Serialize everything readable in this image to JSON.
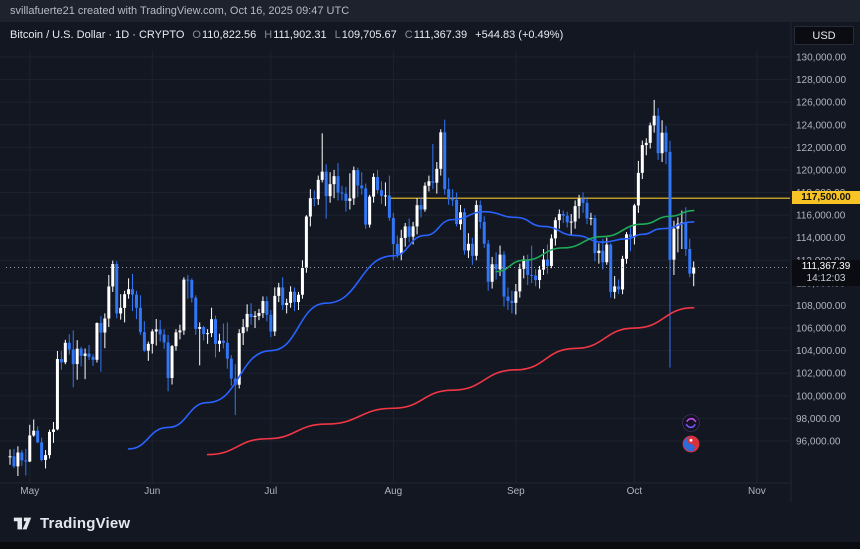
{
  "header": {
    "attribution": "svillafuerte21 created with TradingView.com, Oct 16, 2025 09:47 UTC",
    "symbol_title": "Bitcoin / U.S. Dollar · 1D · CRYPTO",
    "ohlc": {
      "o_label": "O",
      "o": "110,822.56",
      "h_label": "H",
      "h": "111,902.31",
      "l_label": "L",
      "l": "109,705.67",
      "c_label": "C",
      "c": "111,367.39",
      "change": "+544.83 (+0.49%)"
    },
    "currency_button": "USD"
  },
  "labels": {
    "yellow_level": "117,500.00",
    "last_price": "111,367.39",
    "countdown": "14:12:03"
  },
  "axes": {
    "price_ticks": [
      "130,000.00",
      "128,000.00",
      "126,000.00",
      "124,000.00",
      "122,000.00",
      "120,000.00",
      "118,000.00",
      "116,000.00",
      "114,000.00",
      "112,000.00",
      "110,000.00",
      "108,000.00",
      "106,000.00",
      "104,000.00",
      "102,000.00",
      "100,000.00",
      "98,000.00",
      "96,000.00"
    ],
    "time_ticks": [
      "May",
      "Jun",
      "Jul",
      "Aug",
      "Sep",
      "Oct",
      "Nov"
    ]
  },
  "footer": {
    "logo_text": "TradingView"
  },
  "colors": {
    "background": "#131722",
    "topbar_bg": "#1e222d",
    "grid": "#1c2230",
    "axis_separator": "#1f2532",
    "up": "#ffffff",
    "down": "#3176f6",
    "ma_blue": "#2962ff",
    "ma_green": "#1fab58",
    "ma_red": "#f23645",
    "yellow": "#f7c325",
    "dotted_last": "#9aa0ae",
    "axis_text": "#b0b4bf"
  },
  "chart_data": {
    "type": "candlestick",
    "title": "Bitcoin / U.S. Dollar",
    "interval": "1D",
    "exchange": "CRYPTO",
    "start_date": "2025-04-26",
    "end_date": "2025-10-16",
    "candle_format": "[high, low, close]; open = previous candle close",
    "first_open": 94640,
    "price_axis": {
      "max": 130000,
      "min": 96000,
      "step": 2000
    },
    "month_tick_indices": [
      5,
      36,
      66,
      97,
      128,
      158,
      189
    ],
    "levels": {
      "yellow_line": 117500,
      "yellow_from_index": 96,
      "last_price": 111367.39
    },
    "up_color": "#ffffff",
    "down_color": "#3176f6",
    "candles_hlc": [
      [
        95250,
        93900,
        94646
      ],
      [
        95300,
        93600,
        93754
      ],
      [
        95530,
        92900,
        94978
      ],
      [
        95200,
        93800,
        94284
      ],
      [
        95300,
        92950,
        94182
      ],
      [
        97440,
        94130,
        96490
      ],
      [
        97905,
        96380,
        96910
      ],
      [
        97300,
        95800,
        95880
      ],
      [
        96300,
        94200,
        94320
      ],
      [
        95200,
        93570,
        94750
      ],
      [
        97000,
        94450,
        96800
      ],
      [
        97680,
        95830,
        97030
      ],
      [
        103970,
        96950,
        103260
      ],
      [
        104000,
        102300,
        102970
      ],
      [
        104960,
        102800,
        104700
      ],
      [
        105450,
        103650,
        104100
      ],
      [
        105790,
        100750,
        102810
      ],
      [
        104930,
        101430,
        104170
      ],
      [
        104350,
        102600,
        103540
      ],
      [
        104190,
        101480,
        103740
      ],
      [
        104500,
        103180,
        103450
      ],
      [
        103700,
        102650,
        103190
      ],
      [
        106500,
        102950,
        106450
      ],
      [
        107070,
        102130,
        105600
      ],
      [
        107300,
        104220,
        106850
      ],
      [
        110700,
        106100,
        109680
      ],
      [
        111970,
        109200,
        111670
      ],
      [
        111920,
        106860,
        107290
      ],
      [
        109000,
        106750,
        107790
      ],
      [
        109300,
        106500,
        109000
      ],
      [
        110400,
        108600,
        109440
      ],
      [
        110800,
        107500,
        108960
      ],
      [
        109300,
        106800,
        107800
      ],
      [
        108900,
        105400,
        105640
      ],
      [
        106600,
        103900,
        104000
      ],
      [
        104800,
        103100,
        104600
      ],
      [
        105900,
        103750,
        105700
      ],
      [
        106800,
        104450,
        105880
      ],
      [
        106700,
        104800,
        105430
      ],
      [
        105900,
        104150,
        104730
      ],
      [
        105400,
        100400,
        101580
      ],
      [
        104500,
        101000,
        104400
      ],
      [
        105900,
        104000,
        105620
      ],
      [
        106300,
        105000,
        105790
      ],
      [
        110500,
        105400,
        110290
      ],
      [
        110700,
        108600,
        110260
      ],
      [
        110400,
        108250,
        108680
      ],
      [
        108900,
        105400,
        105930
      ],
      [
        106500,
        102700,
        106090
      ],
      [
        106200,
        104900,
        105470
      ],
      [
        105900,
        104600,
        105550
      ],
      [
        107800,
        105200,
        106790
      ],
      [
        107100,
        103400,
        104600
      ],
      [
        105500,
        103900,
        104880
      ],
      [
        106400,
        104200,
        104690
      ],
      [
        106500,
        102400,
        103290
      ],
      [
        103600,
        100900,
        101530
      ],
      [
        102800,
        98300,
        100980
      ],
      [
        105900,
        100650,
        105550
      ],
      [
        106800,
        104500,
        106080
      ],
      [
        108100,
        105700,
        107250
      ],
      [
        108200,
        106300,
        106980
      ],
      [
        107500,
        106000,
        107080
      ],
      [
        107700,
        106700,
        107330
      ],
      [
        108800,
        106900,
        108390
      ],
      [
        108800,
        106600,
        107170
      ],
      [
        107600,
        105200,
        105700
      ],
      [
        109600,
        105300,
        108850
      ],
      [
        110000,
        108300,
        109600
      ],
      [
        110500,
        107600,
        108040
      ],
      [
        108600,
        107300,
        108230
      ],
      [
        109700,
        107800,
        109220
      ],
      [
        109600,
        107500,
        108300
      ],
      [
        109200,
        107600,
        108950
      ],
      [
        112000,
        108600,
        111330
      ],
      [
        116000,
        110900,
        115880
      ],
      [
        118300,
        115000,
        117500
      ],
      [
        118200,
        116800,
        117420
      ],
      [
        119500,
        116900,
        119120
      ],
      [
        123240,
        118900,
        119850
      ],
      [
        120500,
        115700,
        117680
      ],
      [
        119800,
        117100,
        118740
      ],
      [
        120000,
        117500,
        119450
      ],
      [
        120600,
        117300,
        117990
      ],
      [
        118600,
        117300,
        117900
      ],
      [
        118500,
        116300,
        117260
      ],
      [
        119700,
        116500,
        117480
      ],
      [
        120300,
        116900,
        119980
      ],
      [
        120200,
        117600,
        118630
      ],
      [
        119800,
        117800,
        118370
      ],
      [
        118800,
        114800,
        115160
      ],
      [
        117800,
        114900,
        117640
      ],
      [
        119700,
        117100,
        119380
      ],
      [
        120000,
        117900,
        118210
      ],
      [
        119000,
        117000,
        117700
      ],
      [
        118900,
        116800,
        117740
      ],
      [
        119500,
        115500,
        115760
      ],
      [
        116200,
        112000,
        113440
      ],
      [
        114200,
        112200,
        112550
      ],
      [
        114700,
        112000,
        113980
      ],
      [
        115300,
        113200,
        115000
      ],
      [
        115700,
        113600,
        114090
      ],
      [
        115400,
        113400,
        115000
      ],
      [
        117500,
        114300,
        116880
      ],
      [
        117600,
        115800,
        116500
      ],
      [
        118900,
        116300,
        118600
      ],
      [
        119500,
        118100,
        119000
      ],
      [
        122300,
        118300,
        118870
      ],
      [
        120700,
        117900,
        120100
      ],
      [
        123600,
        119500,
        123330
      ],
      [
        124457,
        117800,
        118300
      ],
      [
        119300,
        116900,
        117400
      ],
      [
        118300,
        116800,
        117350
      ],
      [
        118000,
        115000,
        115200
      ],
      [
        116900,
        114700,
        116250
      ],
      [
        116600,
        112500,
        112870
      ],
      [
        114400,
        112200,
        113460
      ],
      [
        114000,
        111600,
        112400
      ],
      [
        117300,
        112000,
        116900
      ],
      [
        117300,
        114800,
        115400
      ],
      [
        115900,
        113100,
        113470
      ],
      [
        113800,
        109300,
        110100
      ],
      [
        112300,
        109500,
        111650
      ],
      [
        112700,
        110300,
        111200
      ],
      [
        113300,
        110600,
        112500
      ],
      [
        112800,
        107900,
        108790
      ],
      [
        109600,
        107600,
        108400
      ],
      [
        109300,
        107300,
        108230
      ],
      [
        109900,
        107200,
        109250
      ],
      [
        111700,
        108700,
        111240
      ],
      [
        112400,
        110400,
        112080
      ],
      [
        112500,
        109800,
        110700
      ],
      [
        113300,
        110000,
        110650
      ],
      [
        111200,
        109700,
        110250
      ],
      [
        111500,
        109500,
        111170
      ],
      [
        113000,
        110700,
        112060
      ],
      [
        113400,
        110800,
        111500
      ],
      [
        114300,
        111300,
        113940
      ],
      [
        115800,
        113300,
        115550
      ],
      [
        116500,
        114800,
        116100
      ],
      [
        116400,
        115300,
        115950
      ],
      [
        116300,
        114900,
        115360
      ],
      [
        116100,
        114200,
        115430
      ],
      [
        117300,
        114800,
        116800
      ],
      [
        117800,
        115700,
        117450
      ],
      [
        118000,
        116200,
        117080
      ],
      [
        117600,
        115200,
        115700
      ],
      [
        116200,
        115100,
        115740
      ],
      [
        116000,
        111900,
        112640
      ],
      [
        113500,
        111700,
        112850
      ],
      [
        113900,
        111200,
        111830
      ],
      [
        114000,
        111600,
        113390
      ],
      [
        113500,
        108700,
        109200
      ],
      [
        110600,
        108600,
        109690
      ],
      [
        110300,
        109000,
        109420
      ],
      [
        112400,
        109000,
        112130
      ],
      [
        114500,
        111700,
        114300
      ],
      [
        114900,
        112800,
        114050
      ],
      [
        117000,
        113400,
        116860
      ],
      [
        120800,
        116200,
        119740
      ],
      [
        122600,
        119200,
        122200
      ],
      [
        122800,
        121300,
        122400
      ],
      [
        124200,
        121900,
        123950
      ],
      [
        126200,
        123300,
        124800
      ],
      [
        125500,
        120900,
        121480
      ],
      [
        124400,
        120700,
        123300
      ],
      [
        123900,
        120500,
        121600
      ],
      [
        122600,
        102500,
        112050
      ],
      [
        115500,
        110700,
        114800
      ],
      [
        115800,
        112700,
        115250
      ],
      [
        116400,
        113000,
        115350
      ],
      [
        116700,
        112400,
        113000
      ],
      [
        113900,
        110500,
        110822.56
      ],
      [
        111902.31,
        109705.67,
        111367.39
      ]
    ],
    "overlays": [
      {
        "name": "ma-blue",
        "color": "#2962ff",
        "points": [
          [
            30,
            95300
          ],
          [
            40,
            97200
          ],
          [
            50,
            99400
          ],
          [
            66,
            104000
          ],
          [
            80,
            108200
          ],
          [
            97,
            112400
          ],
          [
            105,
            114200
          ],
          [
            112,
            115600
          ],
          [
            120,
            116300
          ],
          [
            128,
            115800
          ],
          [
            135,
            115000
          ],
          [
            143,
            114200
          ],
          [
            150,
            113600
          ],
          [
            156,
            113900
          ],
          [
            160,
            114300
          ],
          [
            165,
            114800
          ],
          [
            173,
            115400
          ]
        ]
      },
      {
        "name": "ma-green",
        "color": "#1fab58",
        "points": [
          [
            123,
            111000
          ],
          [
            130,
            112000
          ],
          [
            140,
            113100
          ],
          [
            150,
            114100
          ],
          [
            160,
            115200
          ],
          [
            167,
            115900
          ],
          [
            173,
            116400
          ]
        ]
      },
      {
        "name": "ma-red",
        "color": "#f23645",
        "points": [
          [
            50,
            94800
          ],
          [
            65,
            96200
          ],
          [
            80,
            97500
          ],
          [
            97,
            98900
          ],
          [
            112,
            100500
          ],
          [
            128,
            102300
          ],
          [
            143,
            104200
          ],
          [
            158,
            106000
          ],
          [
            173,
            107800
          ]
        ]
      }
    ]
  }
}
